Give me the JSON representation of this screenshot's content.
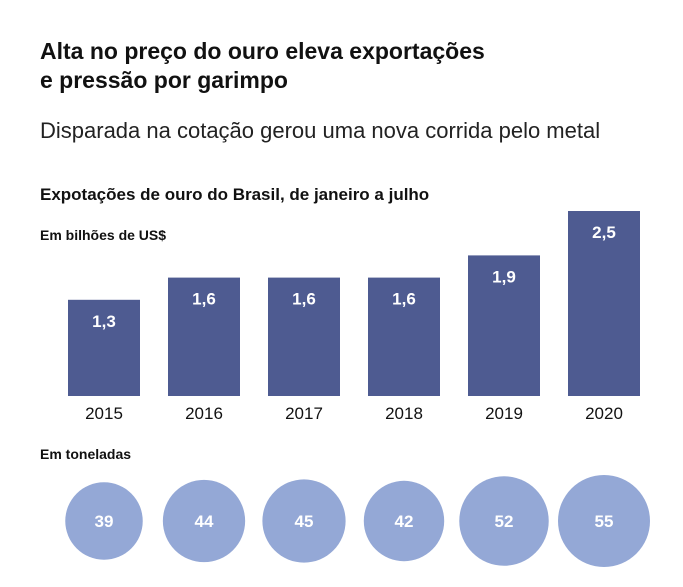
{
  "header": {
    "title_line1": "Alta no preço do ouro eleva exportações",
    "title_line2": "e pressão por garimpo",
    "subtitle": "Disparada na cotação gerou uma nova corrida pelo metal"
  },
  "colors": {
    "bar": "#4e5b91",
    "circle": "#94a8d6",
    "bar_label": "#ffffff",
    "circle_label": "#ffffff",
    "axis_text": "#111111"
  },
  "chart_data": [
    {
      "type": "bar",
      "title": "Expotações de ouro do Brasil, de janeiro a julho",
      "ylabel": "Em bilhões de US$",
      "categories": [
        "2015",
        "2016",
        "2017",
        "2018",
        "2019",
        "2020"
      ],
      "values": [
        1.3,
        1.6,
        1.6,
        1.6,
        1.9,
        2.5
      ],
      "value_labels": [
        "1,3",
        "1,6",
        "1,6",
        "1,6",
        "1,9",
        "2,5"
      ],
      "ylim": [
        0,
        2.5
      ],
      "grid": false
    },
    {
      "type": "bubble",
      "title": "Em toneladas",
      "categories": [
        "2015",
        "2016",
        "2017",
        "2018",
        "2019",
        "2020"
      ],
      "values": [
        39,
        44,
        45,
        42,
        52,
        55
      ]
    }
  ]
}
